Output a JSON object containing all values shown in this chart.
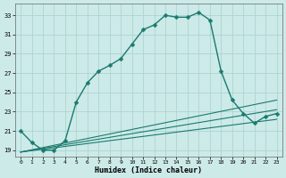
{
  "xlabel": "Humidex (Indice chaleur)",
  "ylabel": "",
  "background_color": "#cceae8",
  "grid_color": "#aed4d2",
  "line_color": "#1a7a6e",
  "x_ticks": [
    0,
    1,
    2,
    3,
    4,
    5,
    6,
    7,
    8,
    9,
    10,
    11,
    12,
    13,
    14,
    15,
    16,
    17,
    18,
    19,
    20,
    21,
    22,
    23
  ],
  "y_ticks": [
    19,
    21,
    23,
    25,
    27,
    29,
    31,
    33
  ],
  "xlim": [
    -0.5,
    23.5
  ],
  "ylim": [
    18.3,
    34.2
  ],
  "series": [
    {
      "x": [
        0,
        1,
        2,
        3,
        4,
        5,
        6,
        7,
        8,
        9,
        10,
        11,
        12,
        13,
        14,
        15,
        16,
        17,
        18,
        19,
        20,
        21,
        22,
        23
      ],
      "y": [
        21.0,
        19.8,
        19.0,
        19.0,
        20.0,
        24.0,
        26.0,
        27.2,
        27.8,
        28.5,
        30.0,
        31.5,
        32.0,
        33.0,
        32.8,
        32.8,
        33.3,
        32.5,
        27.2,
        24.2,
        22.8,
        21.8,
        22.5,
        22.8
      ],
      "has_marker": true,
      "marker": "D",
      "markersize": 2.5,
      "linewidth": 1.0
    },
    {
      "x": [
        0,
        23
      ],
      "y": [
        18.8,
        23.2
      ],
      "has_marker": false,
      "linewidth": 0.8
    },
    {
      "x": [
        0,
        23
      ],
      "y": [
        18.8,
        24.2
      ],
      "has_marker": false,
      "linewidth": 0.8
    },
    {
      "x": [
        0,
        23
      ],
      "y": [
        18.8,
        22.2
      ],
      "has_marker": false,
      "linewidth": 0.8
    }
  ]
}
